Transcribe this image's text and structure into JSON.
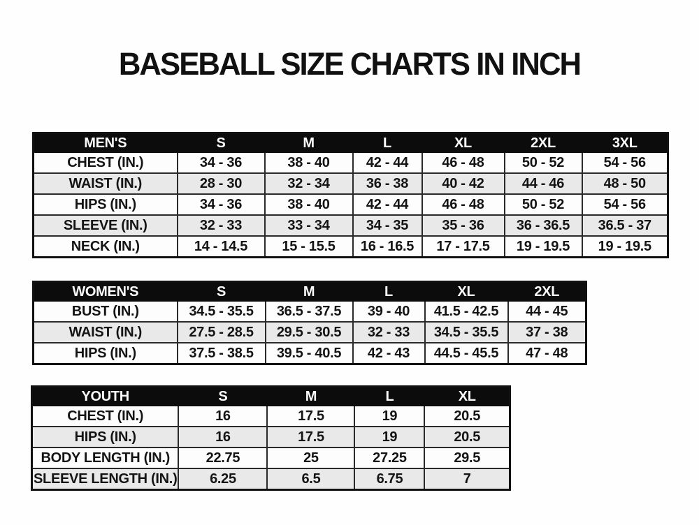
{
  "page": {
    "title": "BASEBALL SIZE CHARTS IN INCH"
  },
  "colors": {
    "header_bg": "#0c0c0c",
    "header_text": "#fbfbfb",
    "row_bg": "#fdfdfd",
    "row_alt_bg": "#e9e9e9",
    "border": "#2a2a2a",
    "title_text": "#111111"
  },
  "tables": [
    {
      "id": "mens",
      "header": [
        "MEN'S",
        "S",
        "M",
        "L",
        "XL",
        "2XL",
        "3XL"
      ],
      "rows": [
        [
          "CHEST (IN.)",
          "34 - 36",
          "38 - 40",
          "42 - 44",
          "46 - 48",
          "50 - 52",
          "54 - 56"
        ],
        [
          "WAIST (IN.)",
          "28 - 30",
          "32 - 34",
          "36 - 38",
          "40 - 42",
          "44 - 46",
          "48 - 50"
        ],
        [
          "HIPS (IN.)",
          "34 - 36",
          "38 - 40",
          "42 - 44",
          "46 - 48",
          "50 - 52",
          "54 - 56"
        ],
        [
          "SLEEVE (IN.)",
          "32 - 33",
          "33 - 34",
          "34 - 35",
          "35 - 36",
          "36 - 36.5",
          "36.5 - 37"
        ],
        [
          "NECK (IN.)",
          "14 - 14.5",
          "15 - 15.5",
          "16 - 16.5",
          "17 - 17.5",
          "19 - 19.5",
          "19 - 19.5"
        ]
      ]
    },
    {
      "id": "womens",
      "header": [
        "WOMEN'S",
        "S",
        "M",
        "L",
        "XL",
        "2XL"
      ],
      "rows": [
        [
          "BUST (IN.)",
          "34.5 - 35.5",
          "36.5 - 37.5",
          "39 - 40",
          "41.5 - 42.5",
          "44 - 45"
        ],
        [
          "WAIST (IN.)",
          "27.5 - 28.5",
          "29.5 - 30.5",
          "32 - 33",
          "34.5 - 35.5",
          "37 - 38"
        ],
        [
          "HIPS (IN.)",
          "37.5 - 38.5",
          "39.5 - 40.5",
          "42 - 43",
          "44.5 - 45.5",
          "47 - 48"
        ]
      ]
    },
    {
      "id": "youth",
      "header": [
        "YOUTH",
        "S",
        "M",
        "L",
        "XL"
      ],
      "rows": [
        [
          "CHEST (IN.)",
          "16",
          "17.5",
          "19",
          "20.5"
        ],
        [
          "HIPS (IN.)",
          "16",
          "17.5",
          "19",
          "20.5"
        ],
        [
          "BODY LENGTH (IN.)",
          "22.75",
          "25",
          "27.25",
          "29.5"
        ],
        [
          "SLEEVE LENGTH (IN.)",
          "6.25",
          "6.5",
          "6.75",
          "7"
        ]
      ]
    }
  ]
}
